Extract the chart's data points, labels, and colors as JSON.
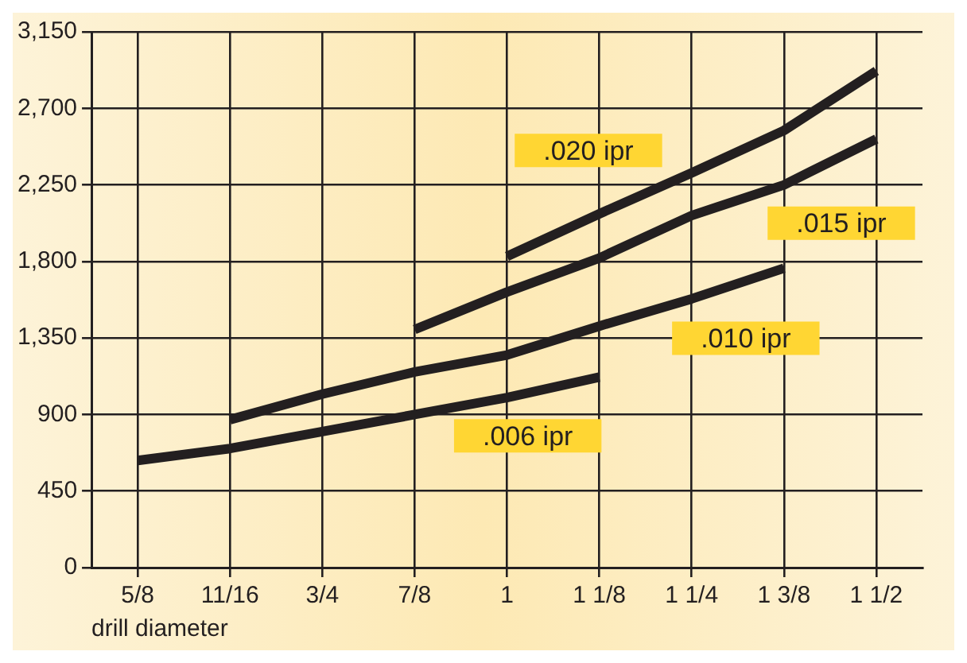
{
  "chart_data": {
    "type": "line",
    "xlabel": "drill diameter",
    "categories": [
      "5/8",
      "11/16",
      "3/4",
      "7/8",
      "1",
      "1 1/8",
      "1 1/4",
      "1 3/8",
      "1 1/2"
    ],
    "series": [
      {
        "name": ".006 ipr",
        "color": "#231f20",
        "values": [
          630,
          700,
          800,
          900,
          1000,
          1120,
          null,
          null,
          null
        ]
      },
      {
        "name": ".010 ipr",
        "color": "#231f20",
        "values": [
          null,
          870,
          1020,
          1150,
          1250,
          1420,
          1580,
          1760,
          null
        ]
      },
      {
        "name": ".015 ipr",
        "color": "#231f20",
        "values": [
          null,
          null,
          null,
          1400,
          1620,
          1820,
          2070,
          2250,
          2520
        ]
      },
      {
        "name": ".020 ipr",
        "color": "#231f20",
        "values": [
          null,
          null,
          null,
          null,
          1830,
          2080,
          2320,
          2570,
          2920
        ]
      }
    ],
    "ylim": [
      0,
      3150
    ],
    "yticks": [
      0,
      450,
      900,
      {
        "value": 1350,
        "label": "1,350"
      },
      {
        "value": 1800,
        "label": "1,800"
      },
      {
        "value": 2250,
        "label": "2,250"
      },
      {
        "value": 2700,
        "label": "2,700"
      },
      {
        "value": 3150,
        "label": "3,150"
      }
    ],
    "grid": true,
    "legend": false,
    "marker": "none",
    "line_style": "solid"
  }
}
